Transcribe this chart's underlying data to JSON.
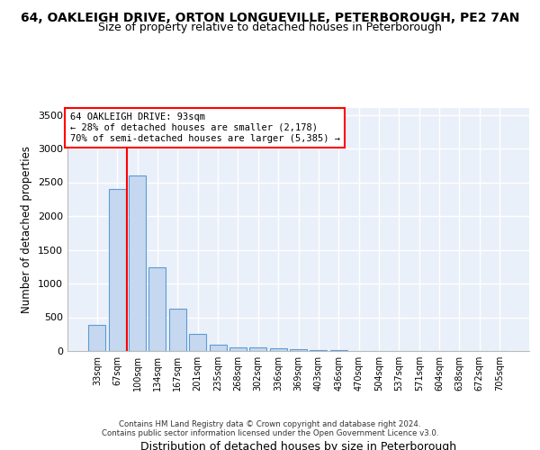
{
  "title1": "64, OAKLEIGH DRIVE, ORTON LONGUEVILLE, PETERBOROUGH, PE2 7AN",
  "title2": "Size of property relative to detached houses in Peterborough",
  "xlabel": "Distribution of detached houses by size in Peterborough",
  "ylabel": "Number of detached properties",
  "footer1": "Contains HM Land Registry data © Crown copyright and database right 2024.",
  "footer2": "Contains public sector information licensed under the Open Government Licence v3.0.",
  "annotation_line1": "64 OAKLEIGH DRIVE: 93sqm",
  "annotation_line2": "← 28% of detached houses are smaller (2,178)",
  "annotation_line3": "70% of semi-detached houses are larger (5,385) →",
  "bar_labels": [
    "33sqm",
    "67sqm",
    "100sqm",
    "134sqm",
    "167sqm",
    "201sqm",
    "235sqm",
    "268sqm",
    "302sqm",
    "336sqm",
    "369sqm",
    "403sqm",
    "436sqm",
    "470sqm",
    "504sqm",
    "537sqm",
    "571sqm",
    "604sqm",
    "638sqm",
    "672sqm",
    "705sqm"
  ],
  "bar_values": [
    390,
    2400,
    2600,
    1240,
    630,
    255,
    95,
    60,
    55,
    45,
    30,
    20,
    10,
    5,
    3,
    2,
    1,
    1,
    1,
    0,
    0
  ],
  "bar_color": "#c5d8f0",
  "bar_edge_color": "#5b9bd5",
  "vline_x": 1.5,
  "vline_color": "red",
  "ylim": [
    0,
    3600
  ],
  "yticks": [
    0,
    500,
    1000,
    1500,
    2000,
    2500,
    3000,
    3500
  ],
  "bg_color": "#eaf0f9",
  "grid_color": "#ffffff",
  "title1_fontsize": 10,
  "title2_fontsize": 9,
  "annot_box_color": "#ffffff",
  "annot_box_edgecolor": "red"
}
